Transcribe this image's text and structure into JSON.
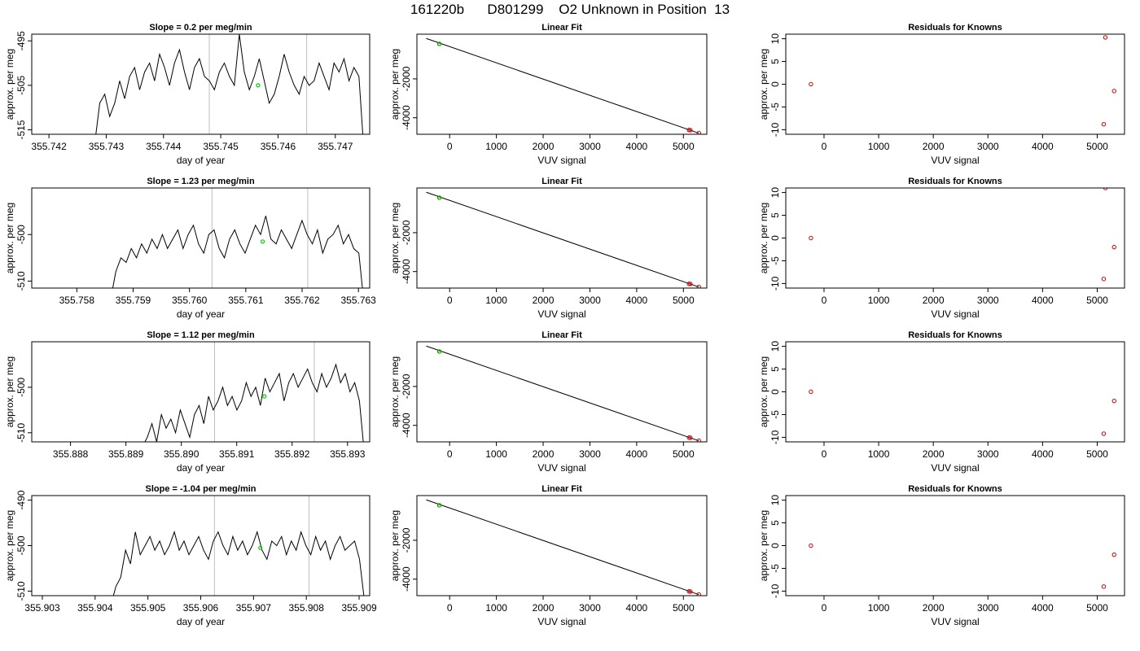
{
  "figure": {
    "title": "161220b      D801299    O2 Unknown in Position  13"
  },
  "colors": {
    "trace": "#000000",
    "marker_lines": "#bebebe",
    "highlight_point": "#00cc00",
    "known_points": "#cc0000"
  },
  "chart_data": [
    {
      "type": "line",
      "title": "Slope =  0.2  per meg/min",
      "xlabel": "day of year",
      "ylabel": "approx. per meg",
      "xlim": [
        355.7417,
        355.7476
      ],
      "ylim": [
        -516,
        -493.5
      ],
      "xticks": [
        {
          "v": 355.742,
          "label": "355.742"
        },
        {
          "v": 355.743,
          "label": "355.743"
        },
        {
          "v": 355.744,
          "label": "355.744"
        },
        {
          "v": 355.745,
          "label": "355.745"
        },
        {
          "v": 355.746,
          "label": "355.746"
        },
        {
          "v": 355.747,
          "label": "355.747"
        }
      ],
      "yticks": [
        {
          "v": -495,
          "label": "-495"
        },
        {
          "v": -505,
          "label": "-505"
        },
        {
          "v": -515,
          "label": "-515"
        }
      ],
      "vlines": [
        355.7448,
        355.7465
      ],
      "trace_x0": 355.7428,
      "trace_x1": 355.7475,
      "trace_y": [
        -518,
        -509,
        -507,
        -512,
        -509,
        -504,
        -508,
        -503,
        -501,
        -506,
        -502,
        -500,
        -504,
        -498,
        -501,
        -505,
        -500,
        -497,
        -502,
        -506,
        -501,
        -499,
        -503,
        -504,
        -506,
        -502,
        -500,
        -503,
        -505,
        -493.5,
        -502,
        -506,
        -503,
        -499,
        -504,
        -509,
        -507,
        -503,
        -498,
        -502,
        -505,
        -507,
        -503,
        -505,
        -504,
        -500,
        -503,
        -506,
        -500,
        -502,
        -499,
        -504,
        -501,
        -503,
        -520
      ],
      "highlight": {
        "x": 355.74565,
        "y": -505
      }
    },
    {
      "type": "scatter",
      "title": "Linear Fit",
      "xlabel": "VUV signal",
      "ylabel": "approx. per meg",
      "xlim": [
        -700,
        5500
      ],
      "ylim": [
        -4850,
        300
      ],
      "xticks": [
        {
          "v": 0,
          "label": "0"
        },
        {
          "v": 1000,
          "label": "1000"
        },
        {
          "v": 2000,
          "label": "2000"
        },
        {
          "v": 3000,
          "label": "3000"
        },
        {
          "v": 4000,
          "label": "4000"
        },
        {
          "v": 5000,
          "label": "5000"
        }
      ],
      "yticks": [
        {
          "v": -2000,
          "label": "-2000"
        },
        {
          "v": -4000,
          "label": "-4000"
        }
      ],
      "fit_line": {
        "x": [
          -500,
          5330
        ],
        "y": [
          80,
          -4795
        ]
      },
      "known_points": [
        {
          "x": -220,
          "y": -200
        },
        {
          "x": 5120,
          "y": -4630
        },
        {
          "x": 5150,
          "y": -4640
        },
        {
          "x": 5330,
          "y": -4790
        }
      ],
      "highlight": {
        "x": -215,
        "y": -200
      }
    },
    {
      "type": "scatter",
      "title": "Residuals for Knowns",
      "xlabel": "VUV signal",
      "ylabel": "approx. per meg",
      "xlim": [
        -700,
        5500
      ],
      "ylim": [
        -11,
        11
      ],
      "xticks": [
        {
          "v": 0,
          "label": "0"
        },
        {
          "v": 1000,
          "label": "1000"
        },
        {
          "v": 2000,
          "label": "2000"
        },
        {
          "v": 3000,
          "label": "3000"
        },
        {
          "v": 4000,
          "label": "4000"
        },
        {
          "v": 5000,
          "label": "5000"
        }
      ],
      "yticks": [
        {
          "v": -10,
          "label": "-10"
        },
        {
          "v": -5,
          "label": "-5"
        },
        {
          "v": 0,
          "label": "0"
        },
        {
          "v": 5,
          "label": "5"
        },
        {
          "v": 10,
          "label": "10"
        }
      ],
      "points": [
        {
          "x": -240,
          "y": 0
        },
        {
          "x": 5150,
          "y": 10.3
        },
        {
          "x": 5310,
          "y": -1.5
        },
        {
          "x": 5120,
          "y": -8.8
        }
      ]
    },
    {
      "type": "line",
      "title": "Slope =  1.23  per meg/min",
      "xlabel": "day of year",
      "ylabel": "approx. per meg",
      "xlim": [
        355.7572,
        355.7632
      ],
      "ylim": [
        -511.5,
        -490
      ],
      "xticks": [
        {
          "v": 355.758,
          "label": "355.758"
        },
        {
          "v": 355.759,
          "label": "355.759"
        },
        {
          "v": 355.76,
          "label": "355.760"
        },
        {
          "v": 355.761,
          "label": "355.761"
        },
        {
          "v": 355.762,
          "label": "355.762"
        },
        {
          "v": 355.763,
          "label": "355.763"
        }
      ],
      "yticks": [
        {
          "v": -500,
          "label": "-500"
        },
        {
          "v": -510,
          "label": "-510"
        }
      ],
      "vlines": [
        355.7604,
        355.7621
      ],
      "trace_x0": 355.7586,
      "trace_x1": 355.7631,
      "trace_y": [
        -514,
        -508,
        -505,
        -506,
        -503,
        -505,
        -502,
        -504,
        -501,
        -503,
        -500,
        -503,
        -501,
        -499,
        -503,
        -500,
        -498,
        -502,
        -504,
        -500,
        -499,
        -503,
        -505,
        -501,
        -499,
        -502,
        -504,
        -501,
        -498,
        -500,
        -496,
        -501,
        -502,
        -499,
        -501,
        -503,
        -500,
        -497,
        -500,
        -502,
        -499,
        -504,
        -501,
        -500,
        -498,
        -502,
        -500,
        -503,
        -504,
        -515
      ],
      "highlight": {
        "x": 355.7613,
        "y": -501.5
      }
    },
    {
      "type": "scatter",
      "title": "Linear Fit",
      "xlabel": "VUV signal",
      "ylabel": "approx. per meg",
      "xlim": [
        -700,
        5500
      ],
      "ylim": [
        -4850,
        300
      ],
      "xticks": [
        {
          "v": 0,
          "label": "0"
        },
        {
          "v": 1000,
          "label": "1000"
        },
        {
          "v": 2000,
          "label": "2000"
        },
        {
          "v": 3000,
          "label": "3000"
        },
        {
          "v": 4000,
          "label": "4000"
        },
        {
          "v": 5000,
          "label": "5000"
        }
      ],
      "yticks": [
        {
          "v": -2000,
          "label": "-2000"
        },
        {
          "v": -4000,
          "label": "-4000"
        }
      ],
      "fit_line": {
        "x": [
          -500,
          5330
        ],
        "y": [
          80,
          -4795
        ]
      },
      "known_points": [
        {
          "x": -220,
          "y": -200
        },
        {
          "x": 5120,
          "y": -4630
        },
        {
          "x": 5150,
          "y": -4640
        },
        {
          "x": 5330,
          "y": -4790
        }
      ],
      "highlight": {
        "x": -215,
        "y": -200
      }
    },
    {
      "type": "scatter",
      "title": "Residuals for Knowns",
      "xlabel": "VUV signal",
      "ylabel": "approx. per meg",
      "xlim": [
        -700,
        5500
      ],
      "ylim": [
        -11,
        11
      ],
      "xticks": [
        {
          "v": 0,
          "label": "0"
        },
        {
          "v": 1000,
          "label": "1000"
        },
        {
          "v": 2000,
          "label": "2000"
        },
        {
          "v": 3000,
          "label": "3000"
        },
        {
          "v": 4000,
          "label": "4000"
        },
        {
          "v": 5000,
          "label": "5000"
        }
      ],
      "yticks": [
        {
          "v": -10,
          "label": "-10"
        },
        {
          "v": -5,
          "label": "-5"
        },
        {
          "v": 0,
          "label": "0"
        },
        {
          "v": 5,
          "label": "5"
        },
        {
          "v": 10,
          "label": "10"
        }
      ],
      "points": [
        {
          "x": -240,
          "y": 0
        },
        {
          "x": 5150,
          "y": 11
        },
        {
          "x": 5310,
          "y": -2
        },
        {
          "x": 5120,
          "y": -9
        }
      ]
    },
    {
      "type": "line",
      "title": "Slope =  1.12  per meg/min",
      "xlabel": "day of year",
      "ylabel": "approx. per meg",
      "xlim": [
        355.8873,
        355.8934
      ],
      "ylim": [
        -512,
        -490
      ],
      "xticks": [
        {
          "v": 355.888,
          "label": "355.888"
        },
        {
          "v": 355.889,
          "label": "355.889"
        },
        {
          "v": 355.89,
          "label": "355.890"
        },
        {
          "v": 355.891,
          "label": "355.891"
        },
        {
          "v": 355.892,
          "label": "355.892"
        },
        {
          "v": 355.893,
          "label": "355.893"
        }
      ],
      "yticks": [
        {
          "v": -500,
          "label": "-500"
        },
        {
          "v": -510,
          "label": "-510"
        }
      ],
      "vlines": [
        355.8906,
        355.8924
      ],
      "trace_x0": 355.8893,
      "trace_x1": 355.8933,
      "trace_y": [
        -513,
        -511,
        -508,
        -512,
        -506,
        -509,
        -507,
        -510,
        -505,
        -508,
        -511,
        -506,
        -504,
        -508,
        -502,
        -505,
        -503,
        -500,
        -504,
        -502,
        -505,
        -503,
        -499,
        -502,
        -500,
        -504,
        -498,
        -501,
        -499,
        -497,
        -503,
        -499,
        -497,
        -500,
        -498,
        -496,
        -499,
        -501,
        -497,
        -500,
        -498,
        -495,
        -499,
        -497,
        -501,
        -499,
        -503,
        -514
      ],
      "highlight": {
        "x": 355.8915,
        "y": -502
      }
    },
    {
      "type": "scatter",
      "title": "Linear Fit",
      "xlabel": "VUV signal",
      "ylabel": "approx. per meg",
      "xlim": [
        -700,
        5500
      ],
      "ylim": [
        -4850,
        300
      ],
      "xticks": [
        {
          "v": 0,
          "label": "0"
        },
        {
          "v": 1000,
          "label": "1000"
        },
        {
          "v": 2000,
          "label": "2000"
        },
        {
          "v": 3000,
          "label": "3000"
        },
        {
          "v": 4000,
          "label": "4000"
        },
        {
          "v": 5000,
          "label": "5000"
        }
      ],
      "yticks": [
        {
          "v": -2000,
          "label": "-2000"
        },
        {
          "v": -4000,
          "label": "-4000"
        }
      ],
      "fit_line": {
        "x": [
          -500,
          5330
        ],
        "y": [
          80,
          -4795
        ]
      },
      "known_points": [
        {
          "x": -220,
          "y": -200
        },
        {
          "x": 5120,
          "y": -4630
        },
        {
          "x": 5150,
          "y": -4640
        },
        {
          "x": 5330,
          "y": -4790
        }
      ],
      "highlight": {
        "x": -215,
        "y": -200
      }
    },
    {
      "type": "scatter",
      "title": "Residuals for Knowns",
      "xlabel": "VUV signal",
      "ylabel": "approx. per meg",
      "xlim": [
        -700,
        5500
      ],
      "ylim": [
        -11,
        11
      ],
      "xticks": [
        {
          "v": 0,
          "label": "0"
        },
        {
          "v": 1000,
          "label": "1000"
        },
        {
          "v": 2000,
          "label": "2000"
        },
        {
          "v": 3000,
          "label": "3000"
        },
        {
          "v": 4000,
          "label": "4000"
        },
        {
          "v": 5000,
          "label": "5000"
        }
      ],
      "yticks": [
        {
          "v": -10,
          "label": "-10"
        },
        {
          "v": -5,
          "label": "-5"
        },
        {
          "v": 0,
          "label": "0"
        },
        {
          "v": 5,
          "label": "5"
        },
        {
          "v": 10,
          "label": "10"
        }
      ],
      "points": [
        {
          "x": -240,
          "y": 0
        },
        {
          "x": 5310,
          "y": -2
        },
        {
          "x": 5120,
          "y": -9.2
        }
      ]
    },
    {
      "type": "line",
      "title": "Slope =  -1.04  per meg/min",
      "xlabel": "day of year",
      "ylabel": "approx. per meg",
      "xlim": [
        355.9028,
        355.9092
      ],
      "ylim": [
        -511,
        -489
      ],
      "xticks": [
        {
          "v": 355.903,
          "label": "355.903"
        },
        {
          "v": 355.904,
          "label": "355.904"
        },
        {
          "v": 355.905,
          "label": "355.905"
        },
        {
          "v": 355.906,
          "label": "355.906"
        },
        {
          "v": 355.907,
          "label": "355.907"
        },
        {
          "v": 355.908,
          "label": "355.908"
        },
        {
          "v": 355.909,
          "label": "355.909"
        }
      ],
      "yticks": [
        {
          "v": -490,
          "label": "-490"
        },
        {
          "v": -500,
          "label": "-500"
        },
        {
          "v": -510,
          "label": "-510"
        }
      ],
      "vlines": [
        355.90626,
        355.90805
      ],
      "trace_x0": 355.9043,
      "trace_x1": 355.9091,
      "trace_y": [
        -513,
        -509,
        -507,
        -501,
        -504,
        -497,
        -502,
        -500,
        -498,
        -501,
        -499,
        -502,
        -500,
        -497,
        -501,
        -499,
        -502,
        -500,
        -498,
        -501,
        -503,
        -499,
        -497,
        -500,
        -502,
        -498,
        -501,
        -499,
        -502,
        -500,
        -497,
        -501,
        -503,
        -499,
        -500,
        -498,
        -502,
        -499,
        -501,
        -497,
        -500,
        -502,
        -498,
        -501,
        -499,
        -503,
        -500,
        -498,
        -501,
        -500,
        -499,
        -503,
        -512
      ],
      "highlight": {
        "x": 355.90713,
        "y": -500.5
      }
    },
    {
      "type": "scatter",
      "title": "Linear Fit",
      "xlabel": "VUV signal",
      "ylabel": "approx. per meg",
      "xlim": [
        -700,
        5500
      ],
      "ylim": [
        -4850,
        300
      ],
      "xticks": [
        {
          "v": 0,
          "label": "0"
        },
        {
          "v": 1000,
          "label": "1000"
        },
        {
          "v": 2000,
          "label": "2000"
        },
        {
          "v": 3000,
          "label": "3000"
        },
        {
          "v": 4000,
          "label": "4000"
        },
        {
          "v": 5000,
          "label": "5000"
        }
      ],
      "yticks": [
        {
          "v": -2000,
          "label": "-2000"
        },
        {
          "v": -4000,
          "label": "-4000"
        }
      ],
      "fit_line": {
        "x": [
          -500,
          5330
        ],
        "y": [
          80,
          -4795
        ]
      },
      "known_points": [
        {
          "x": -220,
          "y": -200
        },
        {
          "x": 5120,
          "y": -4630
        },
        {
          "x": 5150,
          "y": -4640
        },
        {
          "x": 5330,
          "y": -4790
        }
      ],
      "highlight": {
        "x": -215,
        "y": -200
      }
    },
    {
      "type": "scatter",
      "title": "Residuals for Knowns",
      "xlabel": "VUV signal",
      "ylabel": "approx. per meg",
      "xlim": [
        -700,
        5500
      ],
      "ylim": [
        -11,
        11
      ],
      "xticks": [
        {
          "v": 0,
          "label": "0"
        },
        {
          "v": 1000,
          "label": "1000"
        },
        {
          "v": 2000,
          "label": "2000"
        },
        {
          "v": 3000,
          "label": "3000"
        },
        {
          "v": 4000,
          "label": "4000"
        },
        {
          "v": 5000,
          "label": "5000"
        }
      ],
      "yticks": [
        {
          "v": -10,
          "label": "-10"
        },
        {
          "v": -5,
          "label": "-5"
        },
        {
          "v": 0,
          "label": "0"
        },
        {
          "v": 5,
          "label": "5"
        },
        {
          "v": 10,
          "label": "10"
        }
      ],
      "points": [
        {
          "x": -240,
          "y": 0
        },
        {
          "x": 5310,
          "y": -2
        },
        {
          "x": 5120,
          "y": -9
        }
      ]
    }
  ]
}
